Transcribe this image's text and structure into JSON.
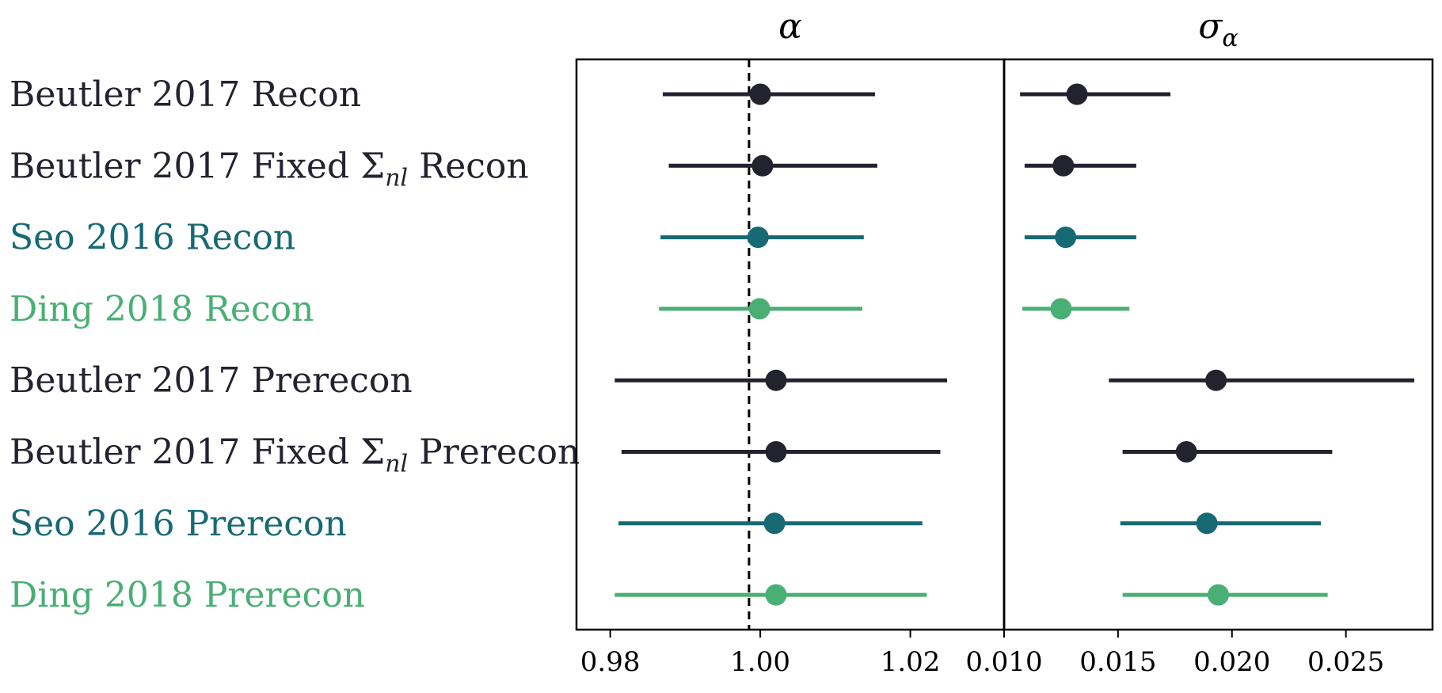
{
  "chart_data": {
    "type": "forest",
    "colors": {
      "dark": "#23222f",
      "teal": "#176973",
      "green": "#4aaf74"
    },
    "rows": [
      {
        "label": "Beutler 2017 Recon",
        "color_key": "dark"
      },
      {
        "label": "Beutler 2017 Fixed Σ",
        "label_sub": "nl",
        "label_suffix": " Recon",
        "color_key": "dark"
      },
      {
        "label": "Seo 2016 Recon",
        "color_key": "teal"
      },
      {
        "label": "Ding 2018 Recon",
        "color_key": "green"
      },
      {
        "label": "Beutler 2017 Prerecon",
        "color_key": "dark"
      },
      {
        "label": "Beutler 2017 Fixed Σ",
        "label_sub": "nl",
        "label_suffix": " Prerecon",
        "color_key": "dark"
      },
      {
        "label": "Seo 2016 Prerecon",
        "color_key": "teal"
      },
      {
        "label": "Ding 2018 Prerecon",
        "color_key": "green"
      }
    ],
    "panels": [
      {
        "title": "α",
        "xlim": [
          0.9755,
          1.0325
        ],
        "ticks": [
          0.98,
          1.0,
          1.02
        ],
        "tick_labels": [
          "0.98",
          "1.00",
          "1.02"
        ],
        "reference_line": 0.9985,
        "points": [
          {
            "value": 1.0,
            "lo": 0.987,
            "hi": 1.0153
          },
          {
            "value": 1.0003,
            "lo": 0.9878,
            "hi": 1.0156
          },
          {
            "value": 0.9997,
            "lo": 0.9867,
            "hi": 1.0138
          },
          {
            "value": 0.9999,
            "lo": 0.9865,
            "hi": 1.0136
          },
          {
            "value": 1.0021,
            "lo": 0.9806,
            "hi": 1.0249
          },
          {
            "value": 1.0021,
            "lo": 0.9815,
            "hi": 1.024
          },
          {
            "value": 1.0019,
            "lo": 0.9811,
            "hi": 1.0216
          },
          {
            "value": 1.0021,
            "lo": 0.9806,
            "hi": 1.0222
          }
        ]
      },
      {
        "title": "σ",
        "title_sub": "α",
        "xlim": [
          0.01,
          0.0288
        ],
        "ticks": [
          0.01,
          0.015,
          0.02,
          0.025
        ],
        "tick_labels": [
          "0.010",
          "0.015",
          "0.020",
          "0.025"
        ],
        "points": [
          {
            "value": 0.0132,
            "lo": 0.0107,
            "hi": 0.0173
          },
          {
            "value": 0.0126,
            "lo": 0.0109,
            "hi": 0.0158
          },
          {
            "value": 0.0127,
            "lo": 0.0109,
            "hi": 0.0158
          },
          {
            "value": 0.0125,
            "lo": 0.0108,
            "hi": 0.0155
          },
          {
            "value": 0.0193,
            "lo": 0.0146,
            "hi": 0.028
          },
          {
            "value": 0.018,
            "lo": 0.0152,
            "hi": 0.0244
          },
          {
            "value": 0.0189,
            "lo": 0.0151,
            "hi": 0.0239
          },
          {
            "value": 0.0194,
            "lo": 0.0152,
            "hi": 0.0242
          }
        ]
      }
    ]
  }
}
